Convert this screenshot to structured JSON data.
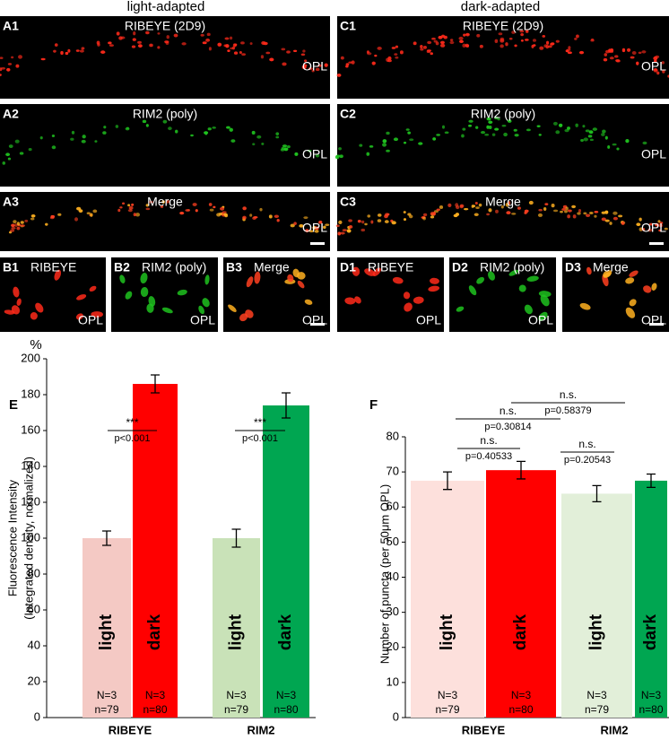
{
  "panels": {
    "headers": [
      "light-adapted",
      "dark-adapted"
    ],
    "images": [
      {
        "label": "A1",
        "title": "RIBEYE (2D9)",
        "region": "OPL"
      },
      {
        "label": "A2",
        "title": "RIM2 (poly)",
        "region": "OPL"
      },
      {
        "label": "A3",
        "title": "Merge",
        "region": "OPL"
      },
      {
        "label": "C1",
        "title": "RIBEYE (2D9)",
        "region": "OPL"
      },
      {
        "label": "C2",
        "title": "RIM2 (poly)",
        "region": "OPL"
      },
      {
        "label": "C3",
        "title": "Merge",
        "region": "OPL"
      },
      {
        "label": "B1",
        "title": "RIBEYE",
        "region": "OPL"
      },
      {
        "label": "B2",
        "title": "RIM2 (poly)",
        "region": "OPL"
      },
      {
        "label": "B3",
        "title": "Merge",
        "region": "OPL"
      },
      {
        "label": "D1",
        "title": "RIBEYE",
        "region": "OPL"
      },
      {
        "label": "D2",
        "title": "RIM2 (poly)",
        "region": "OPL"
      },
      {
        "label": "D3",
        "title": "Merge",
        "region": "OPL"
      }
    ]
  },
  "chart_data": [
    {
      "type": "bar",
      "panel_label": "E",
      "y_unit": "%",
      "ylabel": [
        "Fluorescence Intensity",
        "(Integrated density, normalized)"
      ],
      "categories": [
        "RIBEYE",
        "RIM2"
      ],
      "ylim": [
        0,
        200
      ],
      "yticks": [
        0,
        20,
        40,
        60,
        80,
        100,
        120,
        140,
        160,
        180,
        200
      ],
      "series": [
        {
          "name": "light",
          "colors": [
            "#f4c9c4",
            "#c9e2b8"
          ],
          "values": [
            100,
            100
          ],
          "errors": [
            4,
            5
          ],
          "N": [
            "N=3",
            "N=3"
          ],
          "n": [
            "n=79",
            "n=79"
          ]
        },
        {
          "name": "dark",
          "colors": [
            "#ff0000",
            "#00a651"
          ],
          "values": [
            186,
            174
          ],
          "errors": [
            5,
            7
          ],
          "N": [
            "N=3",
            "N=3"
          ],
          "n": [
            "n=80",
            "n=80"
          ]
        }
      ],
      "annotations": [
        {
          "text": "***",
          "p": "p<0.001"
        },
        {
          "text": "***",
          "p": "p<0.001"
        }
      ]
    },
    {
      "type": "bar",
      "panel_label": "F",
      "ylabel": [
        "Number of puncta (per 50μm OPL)"
      ],
      "categories": [
        "RIBEYE",
        "RIM2"
      ],
      "ylim": [
        0,
        80
      ],
      "yticks": [
        0,
        10,
        20,
        30,
        40,
        50,
        60,
        70,
        80
      ],
      "series": [
        {
          "name": "light",
          "colors": [
            "#fde0dc",
            "#e2efd9"
          ],
          "values": [
            67.5,
            63.8
          ],
          "errors": [
            2.5,
            2.3
          ],
          "N": [
            "N=3",
            "N=3"
          ],
          "n": [
            "n=79",
            "n=79"
          ]
        },
        {
          "name": "dark",
          "colors": [
            "#ff0000",
            "#00a651"
          ],
          "values": [
            70.5,
            67.5
          ],
          "errors": [
            2.5,
            1.9
          ],
          "N": [
            "N=3",
            "N=3"
          ],
          "n": [
            "n=80",
            "n=80"
          ]
        }
      ],
      "annotations": [
        {
          "text": "n.s.",
          "p": "p=0.40533"
        },
        {
          "text": "n.s.",
          "p": "p=0.20543"
        },
        {
          "text": "n.s.",
          "p": "p=0.30814"
        },
        {
          "text": "n.s.",
          "p": "p=0.58379"
        }
      ]
    }
  ]
}
